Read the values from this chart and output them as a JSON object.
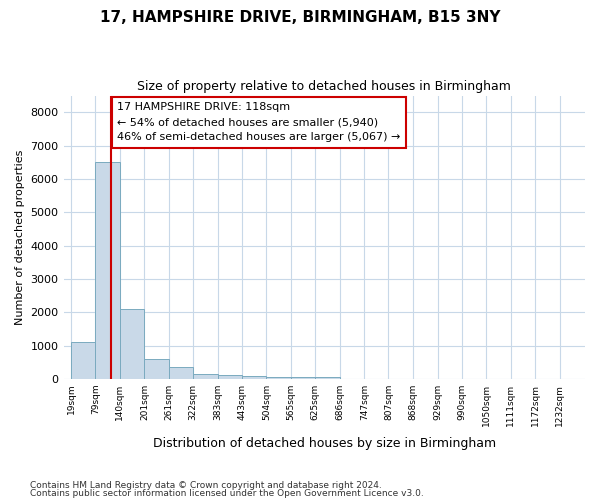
{
  "title1": "17, HAMPSHIRE DRIVE, BIRMINGHAM, B15 3NY",
  "title2": "Size of property relative to detached houses in Birmingham",
  "xlabel": "Distribution of detached houses by size in Birmingham",
  "ylabel": "Number of detached properties",
  "footnote1": "Contains HM Land Registry data © Crown copyright and database right 2024.",
  "footnote2": "Contains public sector information licensed under the Open Government Licence v3.0.",
  "bar_color": "#c9d9e8",
  "bar_edge_color": "#7aaabf",
  "background_color": "#ffffff",
  "grid_color": "#c8d8e8",
  "annotation_text": "17 HAMPSHIRE DRIVE: 118sqm\n← 54% of detached houses are smaller (5,940)\n46% of semi-detached houses are larger (5,067) →",
  "property_size": 118,
  "vline_color": "#cc0000",
  "annotation_box_color": "#cc0000",
  "tick_labels": [
    "19sqm",
    "79sqm",
    "140sqm",
    "201sqm",
    "261sqm",
    "322sqm",
    "383sqm",
    "443sqm",
    "504sqm",
    "565sqm",
    "625sqm",
    "686sqm",
    "747sqm",
    "807sqm",
    "868sqm",
    "929sqm",
    "990sqm",
    "1050sqm",
    "1111sqm",
    "1172sqm",
    "1232sqm"
  ],
  "bar_left_edges": [
    19,
    79,
    140,
    201,
    261,
    322,
    383,
    443,
    504,
    565,
    625,
    686,
    747,
    807,
    868,
    929,
    990,
    1050,
    1111,
    1172,
    1232
  ],
  "bar_widths": [
    60,
    61,
    61,
    60,
    61,
    61,
    60,
    61,
    61,
    60,
    61,
    61,
    60,
    61,
    61,
    61,
    60,
    61,
    61,
    60,
    60
  ],
  "bar_heights": [
    1100,
    6500,
    2100,
    600,
    350,
    150,
    120,
    80,
    60,
    50,
    50,
    0,
    0,
    0,
    0,
    0,
    0,
    0,
    0,
    0,
    0
  ],
  "ylim": [
    0,
    8500
  ],
  "yticks": [
    0,
    1000,
    2000,
    3000,
    4000,
    5000,
    6000,
    7000,
    8000
  ],
  "xlim": [
    0,
    1295
  ]
}
